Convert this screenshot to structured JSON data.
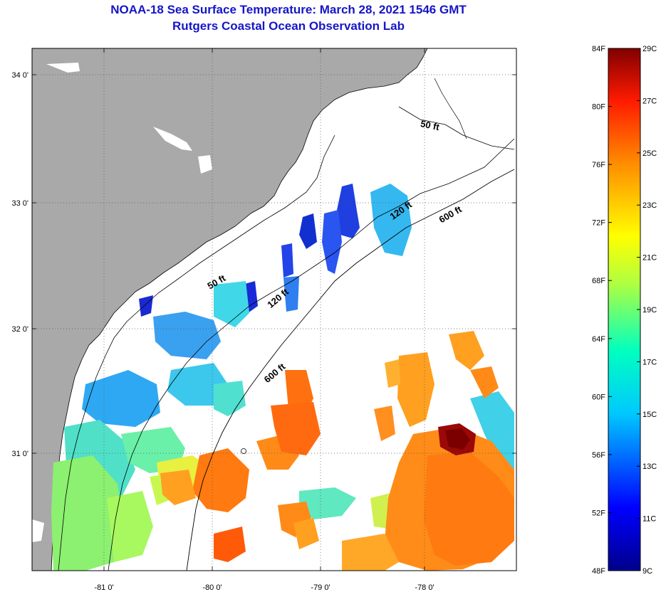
{
  "header": {
    "title": "NOAA-18 Sea Surface Temperature:  March 28, 2021 1546 GMT",
    "subtitle": "Rutgers Coastal Ocean Observation Lab"
  },
  "axes": {
    "lon_ticks": [
      "-81 0'",
      "-80 0'",
      "-79 0'",
      "-78 0'"
    ],
    "lat_ticks": [
      "34 0'",
      "33 0'",
      "32 0'",
      "31 0'"
    ]
  },
  "contours": {
    "label_50": "50 ft",
    "label_120": "120 ft",
    "label_600": "600 ft"
  },
  "colorbar": {
    "fahrenheit_labels": [
      "84F",
      "80F",
      "76F",
      "72F",
      "68F",
      "64F",
      "60F",
      "56F",
      "52F",
      "48F"
    ],
    "celsius_labels": [
      "29C",
      "27C",
      "25C",
      "23C",
      "21C",
      "19C",
      "17C",
      "15C",
      "13C",
      "11C",
      "9C"
    ]
  },
  "colors": {
    "land": "#a9a9a9",
    "title": "#1515c8",
    "warmest": "#800000",
    "coldest": "#00008b"
  }
}
